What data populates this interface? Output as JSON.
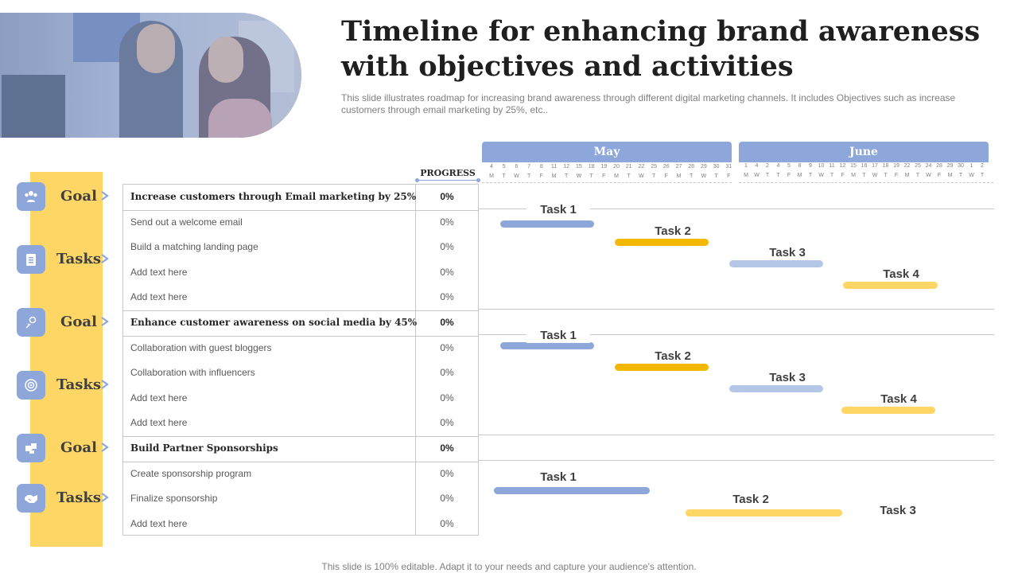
{
  "title": "Timeline for enhancing brand awareness with objectives and activities",
  "subtitle": "This slide illustrates roadmap for increasing brand awareness through different digital marketing channels. It includes Objectives such as increase customers through email marketing by 25%, etc..",
  "footer": "This slide is 100% editable. Adapt it to your needs and capture your audience's attention.",
  "colors": {
    "blue": "#8ea7db",
    "light_blue": "#b4c7e7",
    "gold": "#f5b800",
    "yellow": "#fdd665"
  },
  "progress_header": "PROGRESS",
  "months": [
    {
      "name": "May",
      "days": [
        "4",
        "5",
        "6",
        "7",
        "8",
        "11",
        "12",
        "15",
        "18",
        "19",
        "20",
        "21",
        "22",
        "25",
        "26",
        "27",
        "28",
        "29",
        "30",
        "31"
      ],
      "weekdays": [
        "M",
        "T",
        "W",
        "T",
        "F",
        "M",
        "T",
        "W",
        "T",
        "F",
        "M",
        "T",
        "W",
        "T",
        "F",
        "M",
        "T",
        "W",
        "T",
        "F"
      ]
    },
    {
      "name": "June",
      "days": [
        "1",
        "4",
        "2",
        "4",
        "5",
        "8",
        "9",
        "10",
        "11",
        "12",
        "15",
        "16",
        "17",
        "18",
        "19",
        "22",
        "25",
        "24",
        "28",
        "29",
        "30",
        "1",
        "2"
      ],
      "weekdays": [
        "M",
        "W",
        "T",
        "T",
        "F",
        "M",
        "T",
        "W",
        "T",
        "F",
        "M",
        "T",
        "W",
        "T",
        "F",
        "M",
        "T",
        "W",
        "F",
        "M",
        "T",
        "W",
        "T"
      ]
    }
  ],
  "side_labels": [
    {
      "text": "Goal",
      "icon": "people-group-icon"
    },
    {
      "text": "Tasks",
      "icon": "clipboard-icon"
    },
    {
      "text": "Goal",
      "icon": "lightbulb-icon"
    },
    {
      "text": "Tasks",
      "icon": "target-icon"
    },
    {
      "text": "Goal",
      "icon": "puzzle-icon"
    },
    {
      "text": "Tasks",
      "icon": "handshake-icon"
    }
  ],
  "rows": [
    {
      "type": "goal",
      "text": "Increase customers through Email marketing by 25%",
      "progress": "0%"
    },
    {
      "type": "task",
      "text": "Send out a welcome email",
      "progress": "0%"
    },
    {
      "type": "task",
      "text": "Build a matching landing page",
      "progress": "0%"
    },
    {
      "type": "task",
      "text": "Add text here",
      "progress": "0%"
    },
    {
      "type": "task",
      "text": "Add text here",
      "progress": "0%"
    },
    {
      "type": "goal",
      "text": "Enhance customer awareness on social media by 45%",
      "progress": "0%"
    },
    {
      "type": "task",
      "text": "Collaboration with guest bloggers",
      "progress": "0%"
    },
    {
      "type": "task",
      "text": "Collaboration with influencers",
      "progress": "0%"
    },
    {
      "type": "task",
      "text": "Add text here",
      "progress": "0%"
    },
    {
      "type": "task",
      "text": "Add text here",
      "progress": "0%"
    },
    {
      "type": "goal",
      "text": "Build Partner Sponsorships",
      "progress": "0%"
    },
    {
      "type": "task",
      "text": "Create sponsorship program",
      "progress": "0%"
    },
    {
      "type": "task",
      "text": "Finalize sponsorship",
      "progress": "0%"
    },
    {
      "type": "task",
      "text": "Add text here",
      "progress": "0%"
    }
  ],
  "gantt": [
    {
      "label": "Task 1",
      "color": "#8ea7db"
    },
    {
      "label": "Task 2",
      "color": "#f5b800"
    },
    {
      "label": "Task 3",
      "color": "#b4c7e7"
    },
    {
      "label": "Task 4",
      "color": "#fdd665"
    },
    {
      "label": "Task 1",
      "color": "#8ea7db"
    },
    {
      "label": "Task 2",
      "color": "#f5b800"
    },
    {
      "label": "Task 3",
      "color": "#b4c7e7"
    },
    {
      "label": "Task 4",
      "color": "#fdd665"
    },
    {
      "label": "Task 1",
      "color": "#8ea7db"
    },
    {
      "label": "Task 2",
      "color": "#fdd665"
    },
    {
      "label": "Task 3",
      "color": ""
    }
  ]
}
